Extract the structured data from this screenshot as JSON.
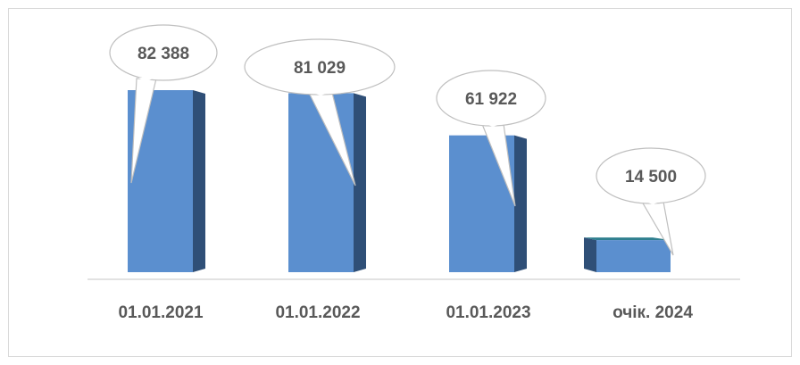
{
  "chart_data": {
    "type": "bar",
    "categories": [
      "01.01.2021",
      "01.01.2022",
      "01.01.2023",
      "очік. 2024"
    ],
    "values": [
      82388,
      81029,
      61922,
      14500
    ],
    "value_labels": [
      "82 388",
      "81 029",
      "61 922",
      "14 500"
    ],
    "title": "",
    "xlabel": "",
    "ylabel": "",
    "ylim": [
      0,
      82388
    ],
    "grid": false,
    "legend": "none",
    "style": "3d-column-with-callouts"
  },
  "colors": {
    "bar_front": "#5b8fcf",
    "bar_side": "#2f4f77",
    "bar_top": "#7aa6da",
    "last_bar_top": "#2f7f8f",
    "axis": "#d9d9d9",
    "callout_stroke": "#bfbfbf",
    "label_text": "#595959"
  }
}
